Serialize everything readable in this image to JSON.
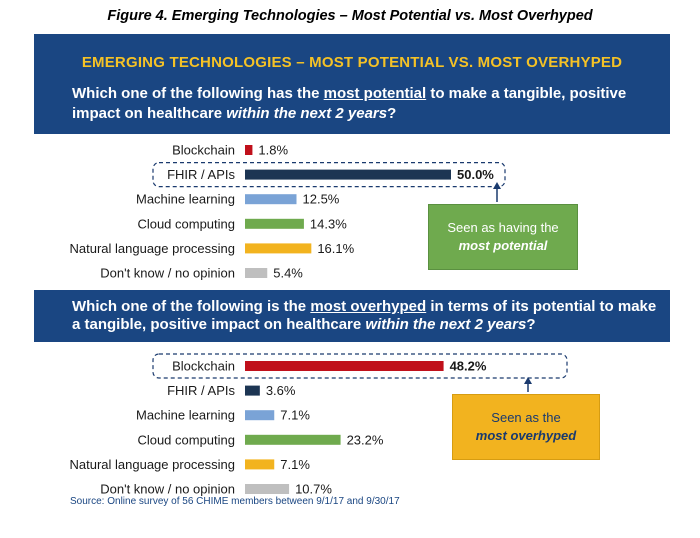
{
  "figure_title": "Figure 4. Emerging Technologies – Most Potential vs. Most Overhyped",
  "panel_heading": "EMERGING TECHNOLOGIES – MOST POTENTIAL VS. MOST OVERHYPED",
  "question1": {
    "pre": "Which one of the following has the ",
    "underlined": "most potential",
    "mid": " to make a tangible, positive impact on healthcare ",
    "italic": "within the next 2 years",
    "post": "?"
  },
  "question2": {
    "pre": "Which one of the following is the ",
    "underlined": "most overhyped",
    "mid": " in terms of its potential to make a tangible, positive impact on healthcare ",
    "italic": "within the next 2 years",
    "post": "?"
  },
  "callout_potential": {
    "line1": "Seen as having the",
    "line2": "most potential"
  },
  "callout_overhyped": {
    "line1": "Seen as the",
    "line2": "most overhyped"
  },
  "source": "Source: Online survey of 56 CHIME members between 9/1/17 and 9/30/17",
  "colors": {
    "blockchain": "#c0101b",
    "fhir": "#1c3553",
    "ml": "#7aa3d6",
    "cloud": "#6faa4e",
    "nlp": "#f2b31f",
    "dontknow": "#bfbfbf",
    "panel": "#1a4682",
    "heading": "#f5c226"
  },
  "chart_data": [
    {
      "type": "bar",
      "orientation": "horizontal",
      "categories": [
        "Blockchain",
        "FHIR / APIs",
        "Machine learning",
        "Cloud computing",
        "Natural language processing",
        "Don't know / no opinion"
      ],
      "values": [
        1.8,
        50.0,
        12.5,
        14.3,
        16.1,
        5.4
      ],
      "labels": [
        "1.8%",
        "50.0%",
        "12.5%",
        "14.3%",
        "16.1%",
        "5.4%"
      ],
      "highlight_index": 1
    },
    {
      "type": "bar",
      "orientation": "horizontal",
      "categories": [
        "Blockchain",
        "FHIR / APIs",
        "Machine learning",
        "Cloud computing",
        "Natural language processing",
        "Don't know / no opinion"
      ],
      "values": [
        48.2,
        3.6,
        7.1,
        23.2,
        7.1,
        10.7
      ],
      "labels": [
        "48.2%",
        "3.6%",
        "7.1%",
        "23.2%",
        "7.1%",
        "10.7%"
      ],
      "highlight_index": 0
    }
  ]
}
